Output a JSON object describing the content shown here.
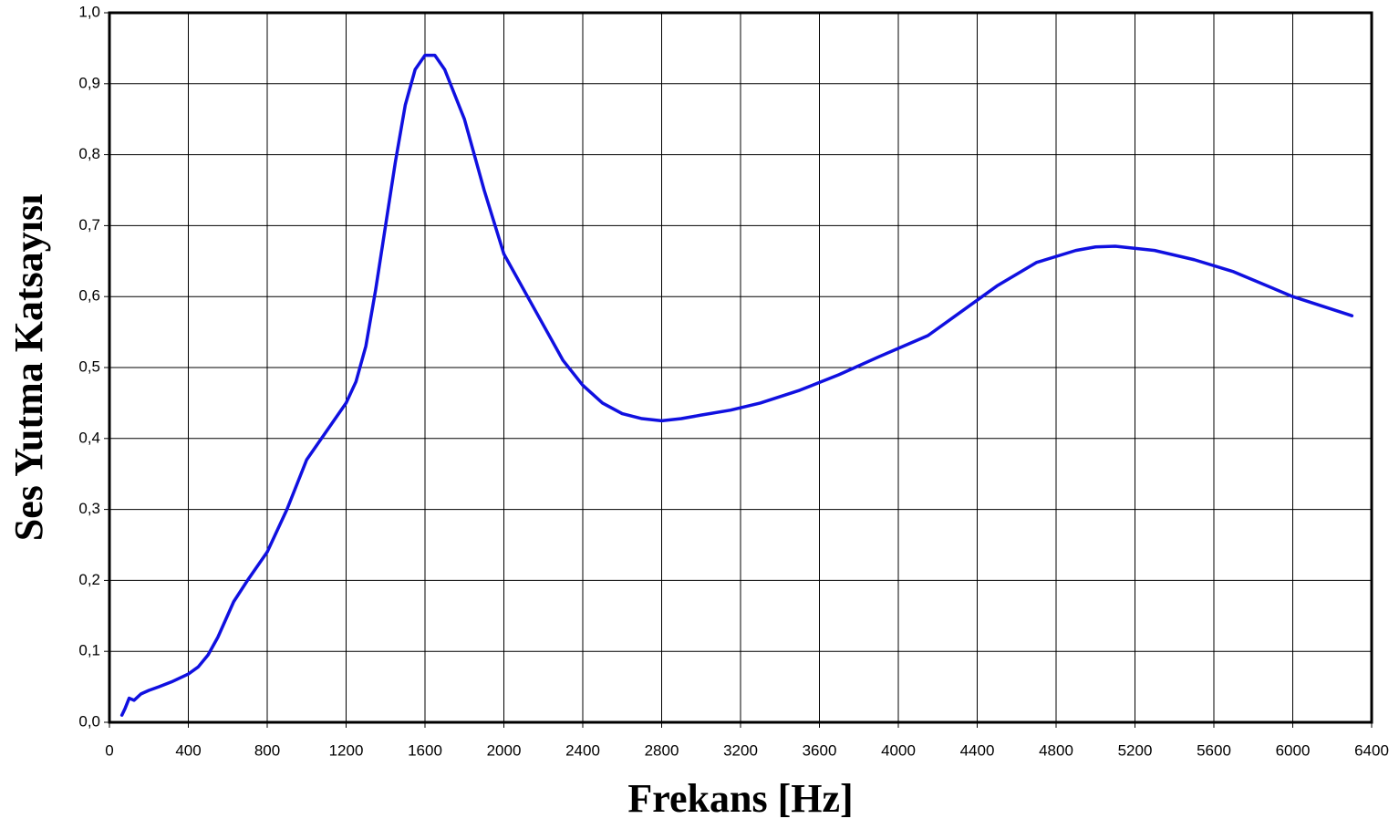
{
  "chart_data": {
    "type": "line",
    "xlabel": "Frekans [Hz]",
    "ylabel": "Ses Yutma Katsayısı",
    "x": [
      63,
      80,
      100,
      125,
      160,
      200,
      250,
      315,
      400,
      450,
      500,
      550,
      630,
      700,
      800,
      900,
      1000,
      1100,
      1200,
      1250,
      1300,
      1350,
      1400,
      1450,
      1500,
      1550,
      1600,
      1650,
      1700,
      1800,
      1900,
      2000,
      2100,
      2200,
      2300,
      2400,
      2500,
      2600,
      2700,
      2800,
      2900,
      3000,
      3150,
      3300,
      3500,
      3700,
      3900,
      4000,
      4150,
      4300,
      4500,
      4700,
      4900,
      5000,
      5100,
      5300,
      5500,
      5700,
      6000,
      6300
    ],
    "values": [
      0.01,
      0.02,
      0.034,
      0.031,
      0.04,
      0.045,
      0.05,
      0.057,
      0.068,
      0.078,
      0.095,
      0.12,
      0.17,
      0.2,
      0.24,
      0.3,
      0.37,
      0.41,
      0.45,
      0.48,
      0.53,
      0.61,
      0.7,
      0.79,
      0.87,
      0.92,
      0.94,
      0.94,
      0.92,
      0.85,
      0.75,
      0.66,
      0.61,
      0.56,
      0.51,
      0.475,
      0.45,
      0.435,
      0.428,
      0.425,
      0.428,
      0.433,
      0.44,
      0.45,
      0.468,
      0.49,
      0.515,
      0.527,
      0.545,
      0.575,
      0.615,
      0.648,
      0.665,
      0.67,
      0.671,
      0.665,
      0.652,
      0.635,
      0.6,
      0.573
    ],
    "color": "#1010e0",
    "xlim": [
      0,
      6400
    ],
    "xticks": [
      0,
      400,
      800,
      1200,
      1600,
      2000,
      2400,
      2800,
      3200,
      3600,
      4000,
      4400,
      4800,
      5200,
      5600,
      6000,
      6400
    ],
    "ylim": [
      0,
      1
    ],
    "yticks": [
      {
        "value": 0,
        "label": "0,0"
      },
      {
        "value": 0.1,
        "label": "0,1"
      },
      {
        "value": 0.2,
        "label": "0,2"
      },
      {
        "value": 0.3,
        "label": "0,3"
      },
      {
        "value": 0.4,
        "label": "0,4"
      },
      {
        "value": 0.5,
        "label": "0,5"
      },
      {
        "value": 0.6,
        "label": "0,6"
      },
      {
        "value": 0.7,
        "label": "0,7"
      },
      {
        "value": 0.8,
        "label": "0,8"
      },
      {
        "value": 0.9,
        "label": "0,9"
      },
      {
        "value": 1,
        "label": "1,0"
      }
    ],
    "grid": true
  }
}
